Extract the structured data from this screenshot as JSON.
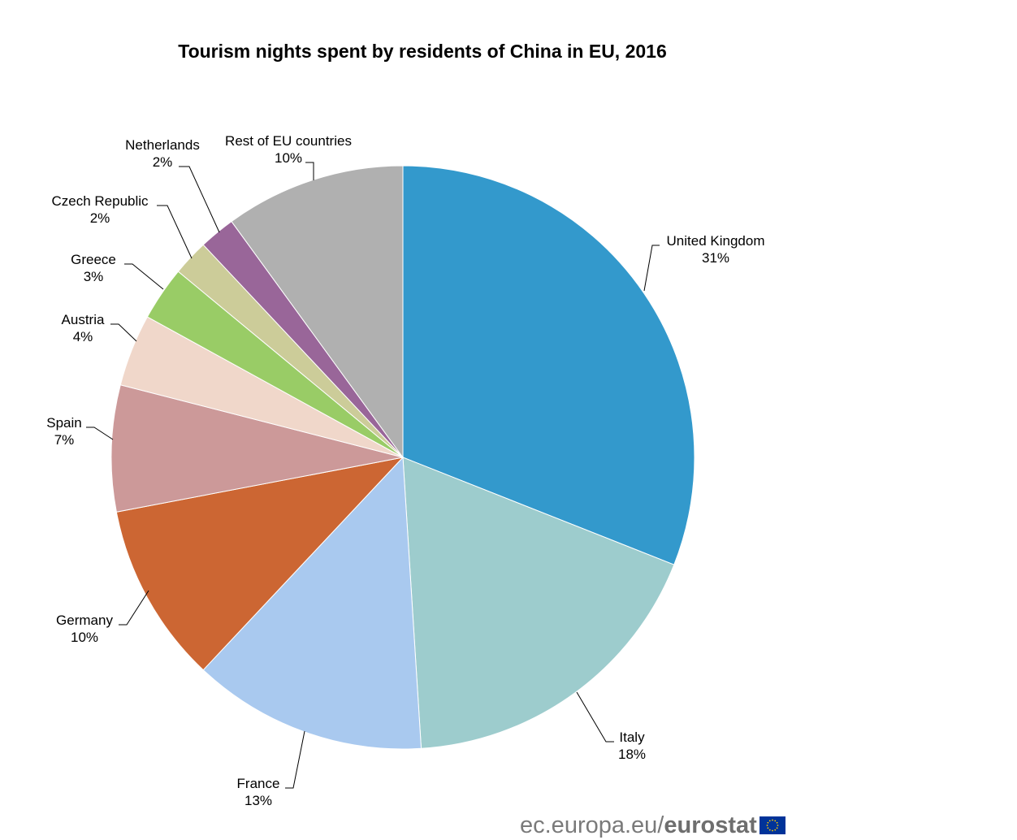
{
  "chart_data": {
    "type": "pie",
    "title": "Tourism nights spent by residents of China in EU, 2016",
    "slices": [
      {
        "label": "United Kingdom",
        "pct_label": "31%",
        "value": 31,
        "color": "#3399cc"
      },
      {
        "label": "Italy",
        "pct_label": "18%",
        "value": 18,
        "color": "#9dcccd"
      },
      {
        "label": "France",
        "pct_label": "13%",
        "value": 13,
        "color": "#a9c9ef"
      },
      {
        "label": "Germany",
        "pct_label": "10%",
        "value": 10,
        "color": "#cc6633"
      },
      {
        "label": "Spain",
        "pct_label": "7%",
        "value": 7,
        "color": "#cc9999"
      },
      {
        "label": "Austria",
        "pct_label": "4%",
        "value": 4,
        "color": "#f0d7ca"
      },
      {
        "label": "Greece",
        "pct_label": "3%",
        "value": 3,
        "color": "#99cc66"
      },
      {
        "label": "Czech Republic",
        "pct_label": "2%",
        "value": 2,
        "color": "#cccc99"
      },
      {
        "label": "Netherlands",
        "pct_label": "2%",
        "value": 2,
        "color": "#996699"
      },
      {
        "label": "Rest of EU countries",
        "pct_label": "10%",
        "value": 10,
        "color": "#b0b0b0"
      }
    ],
    "start_angle": "12 o'clock",
    "direction": "clockwise",
    "legend": "none"
  },
  "footer": {
    "domain": "ec.europa.eu/",
    "brand": "eurostat"
  },
  "colors": {
    "flag_blue": "#003399",
    "flag_star": "#ffcc00"
  }
}
